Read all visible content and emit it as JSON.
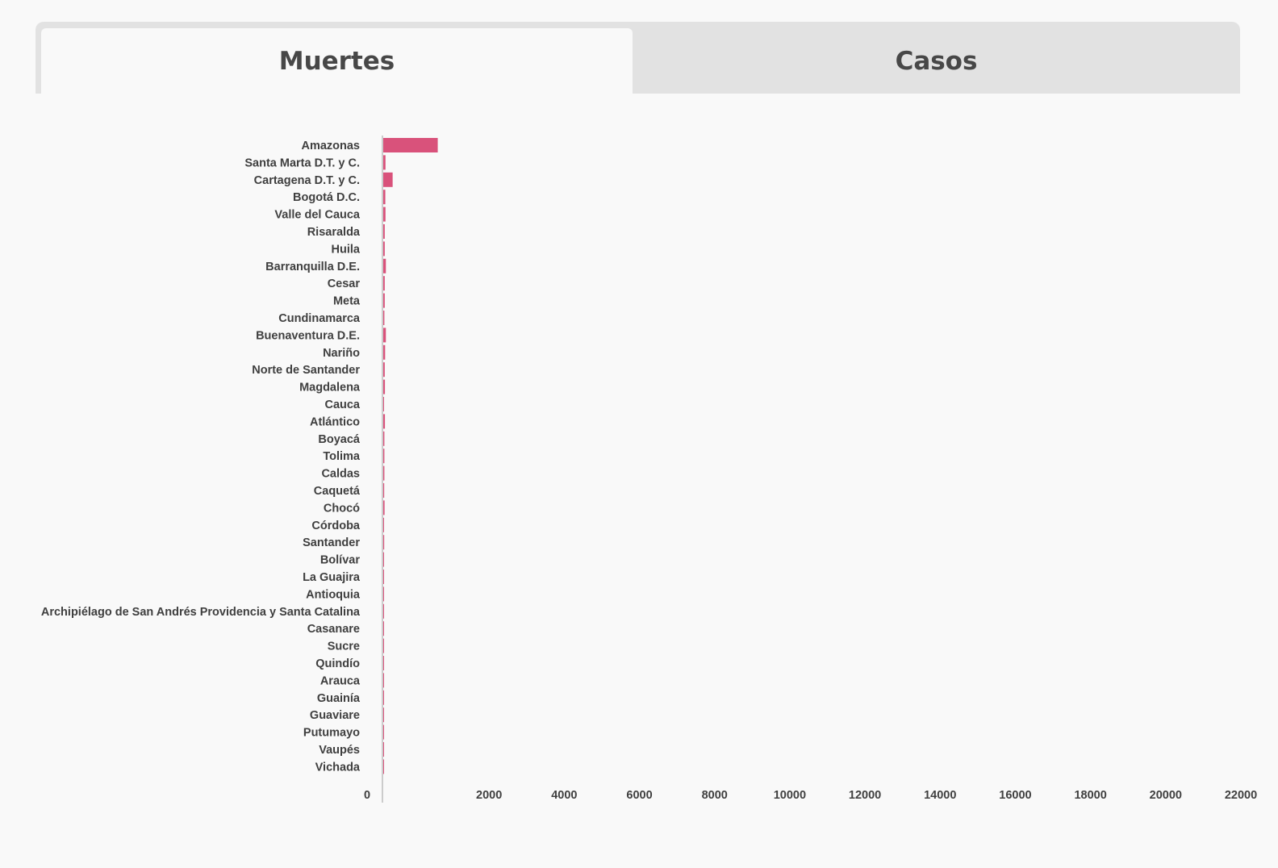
{
  "tabs": [
    {
      "label": "Muertes",
      "active": true
    },
    {
      "label": "Casos",
      "active": false
    }
  ],
  "colors": {
    "bar": "#d9527b",
    "background": "#f9f9f9",
    "tab_inactive": "#e2e2e2",
    "axis": "#cccccc"
  },
  "chart_data": {
    "type": "bar",
    "orientation": "horizontal",
    "title": "",
    "xlabel": "",
    "ylabel": "",
    "xlim": [
      0,
      22000
    ],
    "xticks": [
      0,
      2000,
      4000,
      6000,
      8000,
      10000,
      12000,
      14000,
      16000,
      18000,
      20000,
      22000
    ],
    "grid": false,
    "legend": "none",
    "categories": [
      "Amazonas",
      "Santa Marta D.T. y C.",
      "Cartagena D.T. y C.",
      "Bogotá D.C.",
      "Valle del Cauca",
      "Risaralda",
      "Huila",
      "Barranquilla D.E.",
      "Cesar",
      "Meta",
      "Cundinamarca",
      "Buenaventura D.E.",
      "Nariño",
      "Norte de Santander",
      "Magdalena",
      "Cauca",
      "Atlántico",
      "Boyacá",
      "Tolima",
      "Caldas",
      "Caquetá",
      "Chocó",
      "Córdoba",
      "Santander",
      "Bolívar",
      "La Guajira",
      "Antioquia",
      "Archipiélago de San Andrés Providencia y Santa Catalina",
      "Casanare",
      "Sucre",
      "Quindío",
      "Arauca",
      "Guainía",
      "Guaviare",
      "Putumayo",
      "Vaupés",
      "Vichada"
    ],
    "values": [
      1450,
      60,
      250,
      55,
      60,
      40,
      40,
      70,
      40,
      40,
      30,
      70,
      50,
      40,
      45,
      20,
      45,
      30,
      30,
      30,
      25,
      35,
      20,
      25,
      20,
      20,
      15,
      8,
      15,
      15,
      15,
      10,
      8,
      8,
      8,
      8,
      5
    ]
  }
}
